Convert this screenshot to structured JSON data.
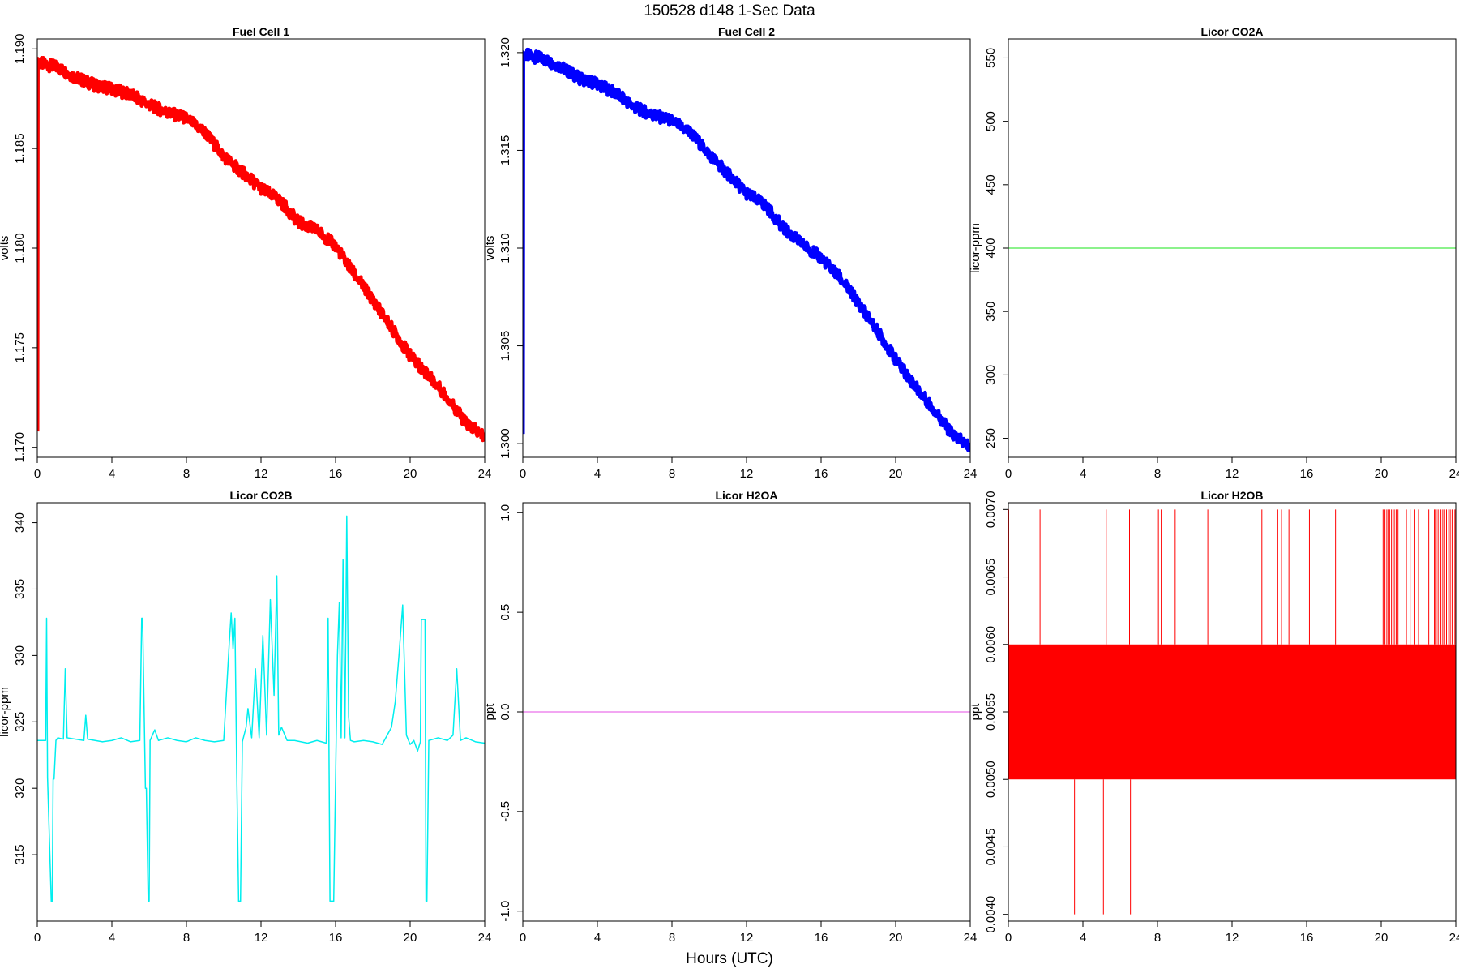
{
  "figure": {
    "title": "150528   d148   1-Sec Data",
    "xlabel": "Hours (UTC)"
  },
  "chart_data": [
    {
      "type": "line",
      "title": "Fuel Cell 1",
      "ylabel": "volts",
      "color": "#ff0000",
      "xlim": [
        0,
        24
      ],
      "ylim": [
        1.1695,
        1.1905
      ],
      "x_ticks": [
        0,
        4,
        8,
        12,
        16,
        20,
        24
      ],
      "y_ticks": [
        1.17,
        1.175,
        1.18,
        1.185,
        1.19
      ],
      "y_tick_labels": [
        "1.170",
        "1.175",
        "1.180",
        "1.185",
        "1.190"
      ],
      "band_width": 0.0006,
      "x": [
        0,
        0.02,
        0.05,
        1,
        2,
        3,
        4,
        5,
        6,
        7,
        8,
        9,
        10,
        11,
        12,
        13,
        14,
        15,
        16,
        17,
        18,
        19,
        20,
        21,
        22,
        23,
        24
      ],
      "y": [
        1.1708,
        1.1895,
        1.1893,
        1.1891,
        1.1886,
        1.1882,
        1.188,
        1.1877,
        1.1872,
        1.1868,
        1.1865,
        1.1858,
        1.1846,
        1.1838,
        1.183,
        1.1824,
        1.1813,
        1.1809,
        1.1801,
        1.1787,
        1.1774,
        1.176,
        1.1746,
        1.1736,
        1.1725,
        1.1712,
        1.1705
      ]
    },
    {
      "type": "line",
      "title": "Fuel Cell 2",
      "ylabel": "volts",
      "color": "#0000ff",
      "xlim": [
        0,
        24
      ],
      "ylim": [
        1.2993,
        1.3207
      ],
      "x_ticks": [
        0,
        4,
        8,
        12,
        16,
        20,
        24
      ],
      "y_ticks": [
        1.3,
        1.305,
        1.31,
        1.315,
        1.32
      ],
      "y_tick_labels": [
        "1.300",
        "1.305",
        "1.310",
        "1.315",
        "1.320"
      ],
      "band_width": 0.0006,
      "x": [
        0,
        0.02,
        0.05,
        1,
        2,
        3,
        4,
        5,
        6,
        7,
        8,
        9,
        10,
        11,
        12,
        13,
        14,
        15,
        16,
        17,
        18,
        19,
        20,
        21,
        22,
        23,
        24
      ],
      "y": [
        1.3005,
        1.32,
        1.3199,
        1.3197,
        1.3193,
        1.3187,
        1.3184,
        1.3179,
        1.3172,
        1.3168,
        1.3165,
        1.3159,
        1.3148,
        1.3138,
        1.3128,
        1.3122,
        1.311,
        1.3102,
        1.3095,
        1.3085,
        1.3072,
        1.3058,
        1.3043,
        1.303,
        1.3018,
        1.3005,
        1.2998
      ]
    },
    {
      "type": "line",
      "title": "Licor CO2A",
      "ylabel": "licor-ppm",
      "color": "#66ee66",
      "xlim": [
        0,
        24
      ],
      "ylim": [
        235,
        565
      ],
      "x_ticks": [
        0,
        4,
        8,
        12,
        16,
        20,
        24
      ],
      "y_ticks": [
        250,
        300,
        350,
        400,
        450,
        500,
        550
      ],
      "y_tick_labels": [
        "250",
        "300",
        "350",
        "400",
        "450",
        "500",
        "550"
      ],
      "band_width": 0,
      "x": [
        0,
        24
      ],
      "y": [
        400,
        400
      ]
    },
    {
      "type": "line",
      "title": "Licor CO2B",
      "ylabel": "licor-ppm",
      "color": "#00eeee",
      "xlim": [
        0,
        24
      ],
      "ylim": [
        310,
        341.5
      ],
      "x_ticks": [
        0,
        4,
        8,
        12,
        16,
        20,
        24
      ],
      "y_ticks": [
        315,
        320,
        325,
        330,
        335,
        340
      ],
      "y_tick_labels": [
        "315",
        "320",
        "325",
        "330",
        "335",
        "340"
      ],
      "band_width": 0,
      "x": [
        0,
        0.45,
        0.5,
        0.55,
        0.75,
        0.8,
        0.85,
        0.9,
        1.0,
        1.1,
        1.4,
        1.5,
        1.6,
        2.5,
        2.6,
        2.7,
        3.5,
        4.0,
        4.5,
        5.0,
        5.5,
        5.6,
        5.65,
        5.8,
        5.85,
        5.95,
        6.0,
        6.05,
        6.3,
        6.5,
        7.0,
        7.5,
        8.0,
        8.5,
        9.0,
        9.5,
        10.0,
        10.3,
        10.4,
        10.5,
        10.6,
        10.7,
        10.8,
        10.9,
        11.0,
        11.2,
        11.3,
        11.5,
        11.7,
        11.9,
        12.1,
        12.3,
        12.5,
        12.7,
        12.85,
        12.95,
        13.1,
        13.4,
        13.8,
        14.5,
        15.0,
        15.5,
        15.6,
        15.7,
        15.9,
        16.0,
        16.1,
        16.2,
        16.3,
        16.4,
        16.5,
        16.6,
        16.7,
        16.8,
        17.0,
        17.5,
        18.0,
        18.5,
        19.0,
        19.2,
        19.4,
        19.6,
        19.8,
        20.0,
        20.2,
        20.4,
        20.55,
        20.6,
        20.8,
        20.85,
        20.9,
        21.0,
        21.5,
        22.0,
        22.3,
        22.5,
        22.7,
        23.0,
        23.5,
        24.0
      ],
      "y": [
        323.6,
        323.6,
        332.8,
        320.8,
        311.5,
        311.5,
        320.7,
        320.7,
        323.6,
        323.8,
        323.7,
        329.0,
        323.8,
        323.6,
        325.5,
        323.7,
        323.5,
        323.6,
        323.8,
        323.5,
        323.6,
        332.8,
        332.8,
        320.0,
        320.0,
        311.5,
        311.5,
        323.6,
        324.4,
        323.6,
        323.8,
        323.6,
        323.5,
        323.8,
        323.6,
        323.5,
        323.6,
        331.0,
        333.2,
        330.5,
        332.8,
        321.0,
        311.5,
        311.5,
        323.5,
        324.6,
        326.0,
        323.8,
        329.0,
        323.8,
        331.5,
        324.0,
        334.2,
        327.0,
        336.0,
        324.0,
        324.6,
        323.6,
        323.6,
        323.4,
        323.6,
        323.4,
        332.8,
        311.5,
        311.5,
        320.6,
        330.0,
        334.0,
        323.8,
        337.2,
        323.8,
        340.5,
        325.4,
        323.6,
        323.5,
        323.6,
        323.5,
        323.3,
        324.6,
        326.5,
        330.0,
        333.8,
        324.0,
        323.3,
        323.6,
        322.8,
        323.5,
        332.7,
        332.7,
        311.5,
        311.5,
        323.6,
        323.8,
        323.6,
        324.0,
        329.0,
        323.6,
        323.8,
        323.5,
        323.4
      ]
    },
    {
      "type": "line",
      "title": "Licor H2OA",
      "ylabel": "ppt",
      "color": "#ee88ee",
      "xlim": [
        0,
        24
      ],
      "ylim": [
        -1.05,
        1.05
      ],
      "x_ticks": [
        0,
        4,
        8,
        12,
        16,
        20,
        24
      ],
      "y_ticks": [
        -1.0,
        -0.5,
        0.0,
        0.5,
        1.0
      ],
      "y_tick_labels": [
        "-1.0",
        "-0.5",
        "0.0",
        "0.5",
        "1.0"
      ],
      "band_width": 0,
      "x": [
        0,
        24
      ],
      "y": [
        0,
        0
      ]
    },
    {
      "type": "line",
      "title": "Licor H2OB",
      "ylabel": "ppt",
      "color": "#ff0000",
      "xlim": [
        0,
        24
      ],
      "ylim": [
        0.00395,
        0.00705
      ],
      "x_ticks": [
        0,
        4,
        8,
        12,
        16,
        20,
        24
      ],
      "y_ticks": [
        0.004,
        0.0045,
        0.005,
        0.0055,
        0.006,
        0.0065,
        0.007
      ],
      "y_tick_labels": [
        "0.0040",
        "0.0045",
        "0.0050",
        "0.0055",
        "0.0060",
        "0.0065",
        "0.0070"
      ],
      "band_width": 0,
      "band_range": [
        0.005,
        0.006
      ],
      "x": [
        0,
        24
      ],
      "y": [
        0.005,
        0.006
      ],
      "spikes_up": [
        0.02,
        1.7,
        5.25,
        6.5,
        8.05,
        8.2,
        8.95,
        10.7,
        13.6,
        14.45,
        14.65,
        15.05,
        16.15,
        17.55,
        20.1,
        20.2,
        20.3,
        20.4,
        20.45,
        20.55,
        20.7,
        20.8,
        20.9,
        21.35,
        21.55,
        21.8,
        22.0,
        22.55,
        22.85,
        22.95,
        23.05,
        23.15,
        23.2,
        23.3,
        23.4,
        23.5,
        23.6,
        23.7,
        23.8,
        23.95
      ],
      "spikes_down": [
        3.55,
        5.1,
        6.55
      ]
    }
  ]
}
